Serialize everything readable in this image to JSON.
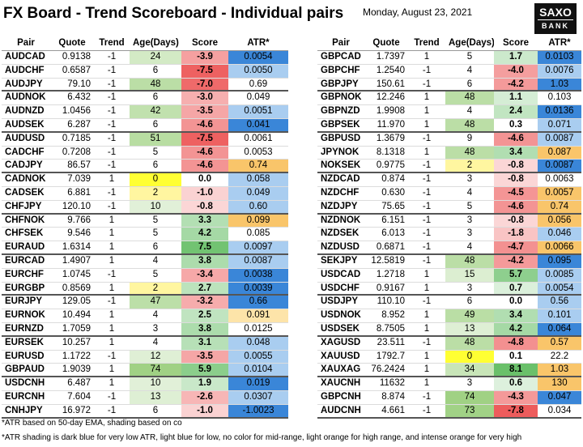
{
  "header": {
    "title": "FX Board - Trend Scoreboard - Individual pairs",
    "date": "Monday, August 23, 2021",
    "logo_top": "SAXO",
    "logo_bottom": "BANK"
  },
  "colors": {
    "dark_blue": "#3a86d8",
    "light_blue": "#a9cdf0",
    "light_orange": "#fde4a9",
    "orange": "#f9c56a"
  },
  "left_table": {
    "header": [
      "Pair",
      "Quote",
      "Trend",
      "Age(Days)",
      "Score",
      "ATR*"
    ],
    "rows": [
      [
        "AUDCAD",
        "0.9138",
        "-1",
        "24",
        "-3.9",
        "0.0054"
      ],
      [
        "AUDCHF",
        "0.6587",
        "-1",
        "6",
        "-7.5",
        "0.0050"
      ],
      [
        "AUDJPY",
        "79.10",
        "-1",
        "48",
        "-7.0",
        "0.69"
      ],
      [
        "AUDNOK",
        "6.432",
        "-1",
        "6",
        "-3.0",
        "0.049"
      ],
      [
        "AUDNZD",
        "1.0456",
        "-1",
        "42",
        "-3.5",
        "0.0051"
      ],
      [
        "AUDSEK",
        "6.287",
        "-1",
        "6",
        "-4.6",
        "0.041"
      ],
      [
        "AUDUSD",
        "0.7185",
        "-1",
        "51",
        "-7.5",
        "0.0061"
      ],
      [
        "CADCHF",
        "0.7208",
        "-1",
        "5",
        "-4.6",
        "0.0053"
      ],
      [
        "CADJPY",
        "86.57",
        "-1",
        "6",
        "-4.6",
        "0.74"
      ],
      [
        "CADNOK",
        "7.039",
        "1",
        "0",
        "0.0",
        "0.058"
      ],
      [
        "CADSEK",
        "6.881",
        "-1",
        "2",
        "-1.0",
        "0.049"
      ],
      [
        "CHFJPY",
        "120.10",
        "-1",
        "10",
        "-0.8",
        "0.60"
      ],
      [
        "CHFNOK",
        "9.766",
        "1",
        "5",
        "3.3",
        "0.099"
      ],
      [
        "CHFSEK",
        "9.546",
        "1",
        "5",
        "4.2",
        "0.085"
      ],
      [
        "EURAUD",
        "1.6314",
        "1",
        "6",
        "7.5",
        "0.0097"
      ],
      [
        "EURCAD",
        "1.4907",
        "1",
        "4",
        "3.8",
        "0.0087"
      ],
      [
        "EURCHF",
        "1.0745",
        "-1",
        "5",
        "-3.4",
        "0.0038"
      ],
      [
        "EURGBP",
        "0.8569",
        "1",
        "2",
        "2.7",
        "0.0039"
      ],
      [
        "EURJPY",
        "129.05",
        "-1",
        "47",
        "-3.2",
        "0.66"
      ],
      [
        "EURNOK",
        "10.494",
        "1",
        "4",
        "2.5",
        "0.091"
      ],
      [
        "EURNZD",
        "1.7059",
        "1",
        "3",
        "3.8",
        "0.0125"
      ],
      [
        "EURSEK",
        "10.257",
        "1",
        "4",
        "3.1",
        "0.048"
      ],
      [
        "EURUSD",
        "1.1722",
        "-1",
        "12",
        "-3.5",
        "0.0055"
      ],
      [
        "GBPAUD",
        "1.9039",
        "1",
        "74",
        "5.9",
        "0.0104"
      ],
      [
        "USDCNH",
        "6.487",
        "1",
        "10",
        "1.9",
        "0.019"
      ],
      [
        "EURCNH",
        "7.604",
        "-1",
        "13",
        "-2.6",
        "0.0307"
      ],
      [
        "CNHJPY",
        "16.972",
        "-1",
        "6",
        "-1.0",
        "-1.0023"
      ]
    ],
    "atr_shading": [
      "dark_blue",
      "light_blue",
      null,
      null,
      "light_blue",
      "dark_blue",
      null,
      null,
      "orange",
      "light_blue",
      "light_blue",
      "light_blue",
      "orange",
      null,
      "light_blue",
      "light_blue",
      "dark_blue",
      "dark_blue",
      "dark_blue",
      "light_orange",
      null,
      "light_blue",
      "light_blue",
      "light_blue",
      "dark_blue",
      "light_blue",
      "dark_blue"
    ]
  },
  "right_table": {
    "header": [
      "Pair",
      "Quote",
      "Trend",
      "Age(Days)",
      "Score",
      "ATR*"
    ],
    "rows": [
      [
        "GBPCAD",
        "1.7397",
        "1",
        "5",
        "1.7",
        "0.0103"
      ],
      [
        "GBPCHF",
        "1.2540",
        "-1",
        "4",
        "-4.0",
        "0.0076"
      ],
      [
        "GBPJPY",
        "150.61",
        "-1",
        "6",
        "-4.2",
        "1.03"
      ],
      [
        "GBPNOK",
        "12.246",
        "1",
        "48",
        "1.1",
        "0.103"
      ],
      [
        "GBPNZD",
        "1.9908",
        "1",
        "4",
        "2.4",
        "0.0136"
      ],
      [
        "GBPSEK",
        "11.970",
        "1",
        "48",
        "0.3",
        "0.071"
      ],
      [
        "GBPUSD",
        "1.3679",
        "-1",
        "9",
        "-4.6",
        "0.0087"
      ],
      [
        "JPYNOK",
        "8.1318",
        "1",
        "48",
        "3.4",
        "0.087"
      ],
      [
        "NOKSEK",
        "0.9775",
        "-1",
        "2",
        "-0.8",
        "0.0087"
      ],
      [
        "NZDCAD",
        "0.874",
        "-1",
        "3",
        "-0.8",
        "0.0063"
      ],
      [
        "NZDCHF",
        "0.630",
        "-1",
        "4",
        "-4.5",
        "0.0057"
      ],
      [
        "NZDJPY",
        "75.65",
        "-1",
        "5",
        "-4.6",
        "0.74"
      ],
      [
        "NZDNOK",
        "6.151",
        "-1",
        "3",
        "-0.8",
        "0.056"
      ],
      [
        "NZDSEK",
        "6.013",
        "-1",
        "3",
        "-1.8",
        "0.046"
      ],
      [
        "NZDUSD",
        "0.6871",
        "-1",
        "4",
        "-4.7",
        "0.0066"
      ],
      [
        "SEKJPY",
        "12.5819",
        "-1",
        "48",
        "-4.2",
        "0.095"
      ],
      [
        "USDCAD",
        "1.2718",
        "1",
        "15",
        "5.7",
        "0.0085"
      ],
      [
        "USDCHF",
        "0.9167",
        "1",
        "3",
        "0.7",
        "0.0054"
      ],
      [
        "USDJPY",
        "110.10",
        "-1",
        "6",
        "0.0",
        "0.56"
      ],
      [
        "USDNOK",
        "8.952",
        "1",
        "49",
        "3.4",
        "0.101"
      ],
      [
        "USDSEK",
        "8.7505",
        "1",
        "13",
        "4.2",
        "0.064"
      ],
      [
        "XAGUSD",
        "23.511",
        "-1",
        "48",
        "-4.8",
        "0.57"
      ],
      [
        "XAUUSD",
        "1792.7",
        "1",
        "0",
        "0.1",
        "22.2"
      ],
      [
        "XAUXAG",
        "76.2424",
        "1",
        "34",
        "8.1",
        "1.03"
      ],
      [
        "XAUCNH",
        "11632",
        "1",
        "3",
        "0.6",
        "130"
      ],
      [
        "GBPCNH",
        "8.874",
        "-1",
        "74",
        "-4.3",
        "0.047"
      ],
      [
        "AUDCNH",
        "4.661",
        "-1",
        "73",
        "-7.8",
        "0.034"
      ]
    ],
    "atr_shading": [
      "dark_blue",
      "light_blue",
      "dark_blue",
      null,
      "dark_blue",
      "light_blue",
      "light_blue",
      "orange",
      "dark_blue",
      null,
      "orange",
      "orange",
      "orange",
      "light_blue",
      "orange",
      "dark_blue",
      "light_blue",
      "light_blue",
      "light_blue",
      "light_blue",
      "dark_blue",
      "orange",
      null,
      "orange",
      "orange",
      "dark_blue",
      null
    ]
  },
  "footnotes": [
    "*ATR based on 50-day EMA, shading based on co",
    "*ATR shading is dark blue for very low ATR, light blue for low, no color for mid-range, light orange for high range, and intense orange for very high"
  ]
}
